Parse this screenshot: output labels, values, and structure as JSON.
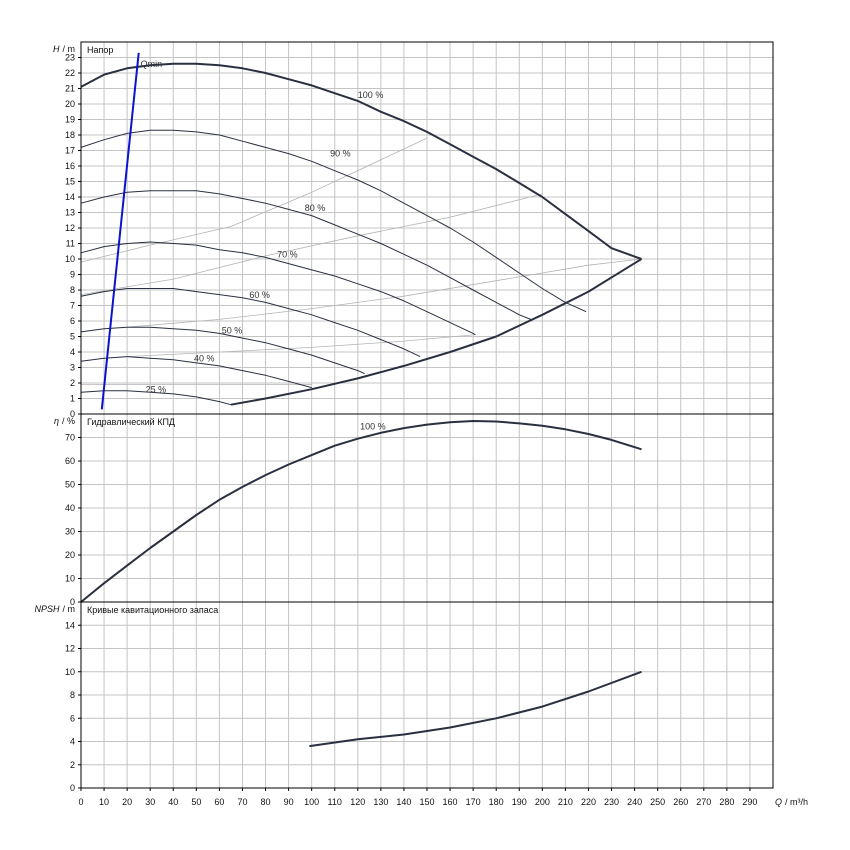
{
  "chart_data": [
    {
      "type": "line",
      "panel": "head",
      "title": "Напор",
      "ylabel_symbol": "H",
      "ylabel_unit": "/ m",
      "xlim": [
        0,
        300
      ],
      "ylim": [
        0,
        24
      ],
      "yticks": [
        0,
        1,
        2,
        3,
        4,
        5,
        6,
        7,
        8,
        9,
        10,
        11,
        12,
        13,
        14,
        15,
        16,
        17,
        18,
        19,
        20,
        21,
        22,
        23
      ],
      "grid": true,
      "series": [
        {
          "name": "100 %",
          "label_at": [
            120,
            20.4
          ],
          "points": [
            [
              0,
              21.1
            ],
            [
              10,
              21.9
            ],
            [
              20,
              22.3
            ],
            [
              30,
              22.5
            ],
            [
              40,
              22.6
            ],
            [
              50,
              22.6
            ],
            [
              60,
              22.5
            ],
            [
              70,
              22.3
            ],
            [
              80,
              22.0
            ],
            [
              90,
              21.6
            ],
            [
              100,
              21.2
            ],
            [
              110,
              20.7
            ],
            [
              120,
              20.2
            ],
            [
              130,
              19.5
            ],
            [
              140,
              18.9
            ],
            [
              150,
              18.2
            ],
            [
              160,
              17.4
            ],
            [
              170,
              16.6
            ],
            [
              180,
              15.8
            ],
            [
              190,
              14.9
            ],
            [
              200,
              14.0
            ],
            [
              210,
              12.9
            ],
            [
              220,
              11.8
            ],
            [
              230,
              10.7
            ],
            [
              243,
              10.0
            ]
          ]
        },
        {
          "name": "90 %",
          "label_at": [
            108,
            16.6
          ],
          "points": [
            [
              0,
              17.2
            ],
            [
              10,
              17.7
            ],
            [
              20,
              18.1
            ],
            [
              30,
              18.3
            ],
            [
              40,
              18.3
            ],
            [
              50,
              18.2
            ],
            [
              60,
              18.0
            ],
            [
              70,
              17.6
            ],
            [
              80,
              17.2
            ],
            [
              90,
              16.8
            ],
            [
              100,
              16.3
            ],
            [
              110,
              15.7
            ],
            [
              120,
              15.1
            ],
            [
              130,
              14.4
            ],
            [
              140,
              13.6
            ],
            [
              150,
              12.8
            ],
            [
              160,
              12.0
            ],
            [
              170,
              11.1
            ],
            [
              180,
              10.1
            ],
            [
              190,
              9.1
            ],
            [
              200,
              8.1
            ],
            [
              210,
              7.2
            ],
            [
              219,
              6.6
            ]
          ]
        },
        {
          "name": "80 %",
          "label_at": [
            97,
            13.1
          ],
          "points": [
            [
              0,
              13.6
            ],
            [
              10,
              14.0
            ],
            [
              20,
              14.3
            ],
            [
              30,
              14.4
            ],
            [
              40,
              14.4
            ],
            [
              50,
              14.4
            ],
            [
              60,
              14.2
            ],
            [
              70,
              13.9
            ],
            [
              80,
              13.6
            ],
            [
              90,
              13.2
            ],
            [
              100,
              12.8
            ],
            [
              110,
              12.2
            ],
            [
              120,
              11.6
            ],
            [
              130,
              11.0
            ],
            [
              140,
              10.3
            ],
            [
              150,
              9.6
            ],
            [
              160,
              8.8
            ],
            [
              170,
              8.0
            ],
            [
              180,
              7.2
            ],
            [
              190,
              6.4
            ],
            [
              195,
              6.1
            ]
          ]
        },
        {
          "name": "70 %",
          "label_at": [
            85,
            10.1
          ],
          "points": [
            [
              0,
              10.4
            ],
            [
              10,
              10.8
            ],
            [
              20,
              11.0
            ],
            [
              30,
              11.1
            ],
            [
              40,
              11.0
            ],
            [
              50,
              10.9
            ],
            [
              60,
              10.6
            ],
            [
              70,
              10.4
            ],
            [
              80,
              10.1
            ],
            [
              90,
              9.7
            ],
            [
              100,
              9.3
            ],
            [
              110,
              8.9
            ],
            [
              120,
              8.4
            ],
            [
              130,
              7.9
            ],
            [
              140,
              7.3
            ],
            [
              150,
              6.6
            ],
            [
              160,
              5.9
            ],
            [
              170,
              5.2
            ],
            [
              171,
              5.1
            ]
          ]
        },
        {
          "name": "60 %",
          "label_at": [
            73,
            7.5
          ],
          "points": [
            [
              0,
              7.6
            ],
            [
              10,
              7.9
            ],
            [
              20,
              8.1
            ],
            [
              30,
              8.1
            ],
            [
              40,
              8.1
            ],
            [
              50,
              7.9
            ],
            [
              60,
              7.7
            ],
            [
              70,
              7.5
            ],
            [
              80,
              7.2
            ],
            [
              90,
              6.8
            ],
            [
              100,
              6.4
            ],
            [
              110,
              5.9
            ],
            [
              120,
              5.4
            ],
            [
              130,
              4.8
            ],
            [
              140,
              4.2
            ],
            [
              147,
              3.7
            ]
          ]
        },
        {
          "name": "50 %",
          "label_at": [
            61,
            5.2
          ],
          "points": [
            [
              0,
              5.3
            ],
            [
              10,
              5.5
            ],
            [
              20,
              5.6
            ],
            [
              30,
              5.6
            ],
            [
              40,
              5.5
            ],
            [
              50,
              5.4
            ],
            [
              60,
              5.2
            ],
            [
              70,
              4.9
            ],
            [
              80,
              4.6
            ],
            [
              90,
              4.2
            ],
            [
              100,
              3.8
            ],
            [
              110,
              3.3
            ],
            [
              120,
              2.8
            ],
            [
              123,
              2.6
            ]
          ]
        },
        {
          "name": "40 %",
          "label_at": [
            49,
            3.4
          ],
          "points": [
            [
              0,
              3.4
            ],
            [
              10,
              3.6
            ],
            [
              20,
              3.7
            ],
            [
              30,
              3.6
            ],
            [
              40,
              3.5
            ],
            [
              50,
              3.3
            ],
            [
              60,
              3.1
            ],
            [
              70,
              2.8
            ],
            [
              80,
              2.5
            ],
            [
              90,
              2.1
            ],
            [
              100,
              1.7
            ]
          ]
        },
        {
          "name": "25 %",
          "label_at": [
            28,
            1.4
          ],
          "points": [
            [
              0,
              1.4
            ],
            [
              10,
              1.5
            ],
            [
              20,
              1.5
            ],
            [
              30,
              1.4
            ],
            [
              40,
              1.3
            ],
            [
              50,
              1.1
            ],
            [
              60,
              0.8
            ],
            [
              65,
              0.6
            ]
          ]
        },
        {
          "name": "min boundary",
          "points": [
            [
              65,
              0.6
            ],
            [
              80,
              1.0
            ],
            [
              100,
              1.6
            ],
            [
              120,
              2.3
            ],
            [
              140,
              3.1
            ],
            [
              160,
              4.0
            ],
            [
              180,
              5.0
            ],
            [
              200,
              6.4
            ],
            [
              220,
              7.9
            ],
            [
              243,
              10.0
            ]
          ]
        }
      ],
      "eff_lines": [
        {
          "points": [
            [
              0,
              9.8
            ],
            [
              30,
              10.9
            ],
            [
              65,
              12.1
            ],
            [
              100,
              14.3
            ],
            [
              150,
              17.8
            ]
          ]
        },
        {
          "points": [
            [
              0,
              7.7
            ],
            [
              40,
              8.7
            ],
            [
              80,
              10.2
            ],
            [
              120,
              11.5
            ],
            [
              160,
              12.7
            ],
            [
              200,
              14.2
            ]
          ]
        },
        {
          "points": [
            [
              20,
              5.6
            ],
            [
              60,
              6.1
            ],
            [
              100,
              6.8
            ],
            [
              140,
              7.6
            ],
            [
              180,
              8.6
            ],
            [
              220,
              9.6
            ],
            [
              243,
              10.0
            ]
          ]
        },
        {
          "points": [
            [
              20,
              3.7
            ],
            [
              60,
              4.0
            ],
            [
              100,
              4.3
            ],
            [
              140,
              4.7
            ],
            [
              170,
              5.1
            ]
          ]
        },
        {
          "points": [
            [
              0,
              1.9
            ],
            [
              30,
              1.9
            ],
            [
              70,
              1.9
            ],
            [
              100,
              1.9
            ]
          ]
        }
      ],
      "qmin": {
        "name": "Qmin",
        "points": [
          [
            9,
            0.3
          ],
          [
            25,
            23.3
          ]
        ],
        "color": "#0a14cc"
      }
    },
    {
      "type": "line",
      "panel": "efficiency",
      "title": "Гидравлический КПД",
      "ylabel_symbol": "η",
      "ylabel_unit": "/ %",
      "xlim": [
        0,
        300
      ],
      "ylim": [
        0,
        80
      ],
      "yticks": [
        0,
        10,
        20,
        30,
        40,
        50,
        60,
        70
      ],
      "grid": true,
      "series": [
        {
          "name": "100 %",
          "label_at": [
            121,
            73.5
          ],
          "points": [
            [
              0,
              0
            ],
            [
              10,
              8
            ],
            [
              20,
              15.5
            ],
            [
              30,
              23
            ],
            [
              40,
              30
            ],
            [
              50,
              37
            ],
            [
              60,
              43.5
            ],
            [
              70,
              49
            ],
            [
              80,
              54
            ],
            [
              90,
              58.5
            ],
            [
              100,
              62.5
            ],
            [
              110,
              66.5
            ],
            [
              120,
              69.5
            ],
            [
              130,
              72
            ],
            [
              140,
              74
            ],
            [
              150,
              75.5
            ],
            [
              160,
              76.5
            ],
            [
              170,
              77
            ],
            [
              180,
              76.8
            ],
            [
              190,
              76
            ],
            [
              200,
              75
            ],
            [
              210,
              73.5
            ],
            [
              220,
              71.5
            ],
            [
              230,
              69
            ],
            [
              243,
              65
            ]
          ]
        }
      ]
    },
    {
      "type": "line",
      "panel": "npsh",
      "title": "Кривые кавитационного запаса",
      "ylabel_symbol": "NPSH",
      "ylabel_unit": "/ m",
      "xlim": [
        0,
        300
      ],
      "ylim": [
        0,
        16
      ],
      "yticks": [
        0,
        2,
        4,
        6,
        8,
        10,
        12,
        14
      ],
      "grid": true,
      "series": [
        {
          "name": "",
          "points": [
            [
              99,
              3.6
            ],
            [
              120,
              4.2
            ],
            [
              140,
              4.6
            ],
            [
              160,
              5.2
            ],
            [
              180,
              6.0
            ],
            [
              200,
              7.0
            ],
            [
              220,
              8.3
            ],
            [
              243,
              10.0
            ]
          ]
        }
      ]
    }
  ],
  "x_axis": {
    "ticks": [
      0,
      10,
      20,
      30,
      40,
      50,
      60,
      70,
      80,
      90,
      100,
      110,
      120,
      130,
      140,
      150,
      160,
      170,
      180,
      190,
      200,
      210,
      220,
      230,
      240,
      250,
      260,
      270,
      280,
      290
    ],
    "label_symbol": "Q",
    "label_unit": "/ m³/h"
  },
  "colors": {
    "curve": "#2a3040",
    "grid": "#c4c4c4",
    "frame": "#000000",
    "eff_line": "#b4b4b4",
    "qmin": "#0a14cc"
  }
}
